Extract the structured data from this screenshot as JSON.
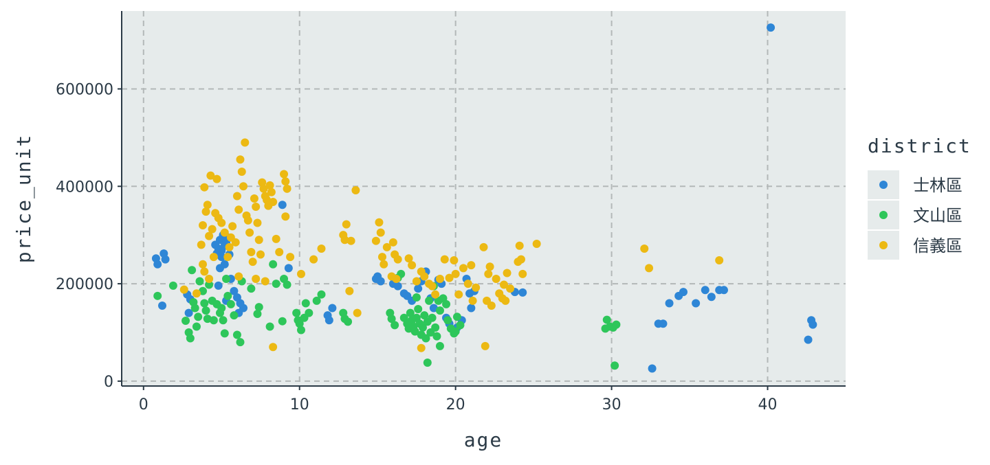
{
  "chart_data": {
    "type": "scatter",
    "title": "",
    "xlabel": "age",
    "ylabel": "price_unit",
    "xlim": [
      -1.4,
      45
    ],
    "ylim": [
      -10000,
      760000
    ],
    "xticks": [
      0,
      10,
      20,
      30,
      40
    ],
    "yticks": [
      0,
      200000,
      400000,
      600000
    ],
    "xtick_labels": [
      "0",
      "10",
      "20",
      "30",
      "40"
    ],
    "ytick_labels": [
      "0",
      "200000",
      "400000",
      "600000"
    ],
    "grid": true,
    "legend_position": "right",
    "legend_title": "district",
    "series": [
      {
        "name": "士林區",
        "color": "#2e86d6",
        "points": [
          [
            0.8,
            252000
          ],
          [
            0.9,
            240000
          ],
          [
            1.3,
            262000
          ],
          [
            1.4,
            250000
          ],
          [
            1.2,
            155000
          ],
          [
            2.8,
            178000
          ],
          [
            3.0,
            168000
          ],
          [
            2.9,
            140000
          ],
          [
            4.6,
            280000
          ],
          [
            4.8,
            272000
          ],
          [
            4.9,
            290000
          ],
          [
            5.0,
            268000
          ],
          [
            5.1,
            300000
          ],
          [
            5.2,
            278000
          ],
          [
            5.3,
            285000
          ],
          [
            5.4,
            295000
          ],
          [
            5.0,
            255000
          ],
          [
            4.7,
            262000
          ],
          [
            5.5,
            260000
          ],
          [
            5.2,
            240000
          ],
          [
            4.9,
            232000
          ],
          [
            5.6,
            210000
          ],
          [
            4.8,
            196000
          ],
          [
            5.8,
            185000
          ],
          [
            6.0,
            172000
          ],
          [
            6.2,
            160000
          ],
          [
            6.1,
            140000
          ],
          [
            6.4,
            150000
          ],
          [
            5.3,
            165000
          ],
          [
            8.9,
            362000
          ],
          [
            9.3,
            232000
          ],
          [
            11.8,
            135000
          ],
          [
            11.9,
            125000
          ],
          [
            12.1,
            150000
          ],
          [
            14.9,
            210000
          ],
          [
            15.0,
            215000
          ],
          [
            15.2,
            205000
          ],
          [
            16.0,
            200000
          ],
          [
            16.3,
            195000
          ],
          [
            16.7,
            180000
          ],
          [
            16.9,
            175000
          ],
          [
            17.2,
            165000
          ],
          [
            17.6,
            190000
          ],
          [
            17.8,
            205000
          ],
          [
            18.1,
            225000
          ],
          [
            18.4,
            170000
          ],
          [
            18.6,
            150000
          ],
          [
            18.9,
            208000
          ],
          [
            19.1,
            200000
          ],
          [
            19.4,
            130000
          ],
          [
            19.6,
            118000
          ],
          [
            20.1,
            110000
          ],
          [
            20.4,
            125000
          ],
          [
            20.7,
            210000
          ],
          [
            21.0,
            150000
          ],
          [
            20.9,
            180000
          ],
          [
            21.2,
            185000
          ],
          [
            23.8,
            183000
          ],
          [
            24.3,
            182000
          ],
          [
            32.6,
            26000
          ],
          [
            33.0,
            118000
          ],
          [
            33.3,
            118000
          ],
          [
            33.7,
            160000
          ],
          [
            34.3,
            175000
          ],
          [
            34.6,
            183000
          ],
          [
            35.4,
            160000
          ],
          [
            36.0,
            187000
          ],
          [
            36.4,
            173000
          ],
          [
            36.9,
            187000
          ],
          [
            37.2,
            187000
          ],
          [
            40.2,
            726000
          ],
          [
            42.6,
            85000
          ],
          [
            42.8,
            125000
          ],
          [
            42.9,
            116000
          ]
        ]
      },
      {
        "name": "文山區",
        "color": "#2ec65a",
        "points": [
          [
            0.9,
            175000
          ],
          [
            1.9,
            196000
          ],
          [
            2.7,
            124000
          ],
          [
            2.9,
            100000
          ],
          [
            3.0,
            88000
          ],
          [
            3.1,
            228000
          ],
          [
            3.2,
            162000
          ],
          [
            3.3,
            150000
          ],
          [
            3.4,
            112000
          ],
          [
            3.5,
            132000
          ],
          [
            3.6,
            205000
          ],
          [
            3.8,
            185000
          ],
          [
            3.9,
            160000
          ],
          [
            4.0,
            145000
          ],
          [
            4.1,
            128000
          ],
          [
            4.2,
            198000
          ],
          [
            4.4,
            165000
          ],
          [
            4.5,
            125000
          ],
          [
            4.7,
            158000
          ],
          [
            4.9,
            140000
          ],
          [
            5.0,
            150000
          ],
          [
            5.1,
            125000
          ],
          [
            5.2,
            98000
          ],
          [
            5.3,
            210000
          ],
          [
            5.4,
            175000
          ],
          [
            5.6,
            158000
          ],
          [
            5.8,
            135000
          ],
          [
            6.0,
            95000
          ],
          [
            6.2,
            80000
          ],
          [
            6.3,
            205000
          ],
          [
            6.9,
            190000
          ],
          [
            7.3,
            138000
          ],
          [
            7.4,
            152000
          ],
          [
            8.3,
            240000
          ],
          [
            8.5,
            200000
          ],
          [
            8.9,
            123000
          ],
          [
            9.0,
            210000
          ],
          [
            9.2,
            198000
          ],
          [
            8.1,
            112000
          ],
          [
            9.8,
            140000
          ],
          [
            9.9,
            125000
          ],
          [
            10.0,
            118000
          ],
          [
            10.1,
            105000
          ],
          [
            10.3,
            130000
          ],
          [
            10.4,
            160000
          ],
          [
            10.6,
            140000
          ],
          [
            11.1,
            165000
          ],
          [
            11.4,
            178000
          ],
          [
            12.8,
            140000
          ],
          [
            12.9,
            128000
          ],
          [
            13.1,
            122000
          ],
          [
            15.8,
            140000
          ],
          [
            15.9,
            128000
          ],
          [
            16.1,
            115000
          ],
          [
            16.5,
            220000
          ],
          [
            16.7,
            130000
          ],
          [
            16.9,
            118000
          ],
          [
            17.0,
            108000
          ],
          [
            17.1,
            140000
          ],
          [
            17.2,
            125000
          ],
          [
            17.3,
            112000
          ],
          [
            17.4,
            102000
          ],
          [
            17.5,
            130000
          ],
          [
            17.6,
            148000
          ],
          [
            17.7,
            118000
          ],
          [
            17.8,
            95000
          ],
          [
            17.9,
            110000
          ],
          [
            18.0,
            135000
          ],
          [
            18.1,
            88000
          ],
          [
            18.2,
            122000
          ],
          [
            18.3,
            165000
          ],
          [
            18.4,
            100000
          ],
          [
            18.5,
            130000
          ],
          [
            18.6,
            195000
          ],
          [
            18.7,
            110000
          ],
          [
            18.8,
            92000
          ],
          [
            19.0,
            145000
          ],
          [
            19.2,
            170000
          ],
          [
            19.4,
            158000
          ],
          [
            19.5,
            125000
          ],
          [
            19.7,
            108000
          ],
          [
            19.9,
            98000
          ],
          [
            20.1,
            132000
          ],
          [
            20.3,
            115000
          ],
          [
            18.2,
            38000
          ],
          [
            19.0,
            72000
          ],
          [
            20.0,
            102000
          ],
          [
            16.3,
            212000
          ],
          [
            17.5,
            172000
          ],
          [
            18.9,
            165000
          ],
          [
            29.6,
            108000
          ],
          [
            29.7,
            126000
          ],
          [
            29.9,
            112000
          ],
          [
            30.1,
            110000
          ],
          [
            30.3,
            116000
          ],
          [
            30.2,
            32000
          ]
        ]
      },
      {
        "name": "信義區",
        "color": "#ecb913",
        "points": [
          [
            2.6,
            188000
          ],
          [
            3.4,
            180000
          ],
          [
            3.7,
            280000
          ],
          [
            3.8,
            320000
          ],
          [
            3.9,
            398000
          ],
          [
            4.0,
            348000
          ],
          [
            4.1,
            362000
          ],
          [
            4.2,
            298000
          ],
          [
            4.3,
            422000
          ],
          [
            4.4,
            312000
          ],
          [
            4.5,
            255000
          ],
          [
            4.6,
            345000
          ],
          [
            4.7,
            415000
          ],
          [
            4.8,
            335000
          ],
          [
            3.8,
            240000
          ],
          [
            3.9,
            225000
          ],
          [
            4.2,
            210000
          ],
          [
            5.0,
            325000
          ],
          [
            5.2,
            305000
          ],
          [
            5.4,
            255000
          ],
          [
            5.5,
            275000
          ],
          [
            5.6,
            295000
          ],
          [
            5.7,
            318000
          ],
          [
            5.9,
            285000
          ],
          [
            6.0,
            380000
          ],
          [
            6.1,
            352000
          ],
          [
            6.2,
            455000
          ],
          [
            6.3,
            430000
          ],
          [
            6.4,
            400000
          ],
          [
            6.5,
            490000
          ],
          [
            6.6,
            340000
          ],
          [
            6.7,
            330000
          ],
          [
            6.8,
            305000
          ],
          [
            6.9,
            265000
          ],
          [
            7.0,
            245000
          ],
          [
            7.1,
            375000
          ],
          [
            7.2,
            358000
          ],
          [
            7.3,
            325000
          ],
          [
            7.4,
            290000
          ],
          [
            7.5,
            260000
          ],
          [
            7.6,
            408000
          ],
          [
            7.7,
            395000
          ],
          [
            7.8,
            380000
          ],
          [
            7.9,
            372000
          ],
          [
            8.0,
            360000
          ],
          [
            8.1,
            402000
          ],
          [
            8.2,
            388000
          ],
          [
            8.3,
            368000
          ],
          [
            8.5,
            292000
          ],
          [
            8.7,
            265000
          ],
          [
            9.0,
            425000
          ],
          [
            9.1,
            410000
          ],
          [
            9.2,
            395000
          ],
          [
            9.1,
            338000
          ],
          [
            9.4,
            255000
          ],
          [
            6.1,
            215000
          ],
          [
            7.2,
            210000
          ],
          [
            8.3,
            70000
          ],
          [
            7.8,
            205000
          ],
          [
            10.1,
            220000
          ],
          [
            10.9,
            250000
          ],
          [
            11.4,
            272000
          ],
          [
            12.8,
            300000
          ],
          [
            13.0,
            322000
          ],
          [
            12.9,
            290000
          ],
          [
            13.3,
            288000
          ],
          [
            13.6,
            392000
          ],
          [
            13.2,
            185000
          ],
          [
            13.7,
            140000
          ],
          [
            14.9,
            288000
          ],
          [
            15.1,
            326000
          ],
          [
            15.2,
            305000
          ],
          [
            15.3,
            255000
          ],
          [
            15.4,
            240000
          ],
          [
            15.6,
            275000
          ],
          [
            16.0,
            285000
          ],
          [
            16.1,
            260000
          ],
          [
            16.3,
            250000
          ],
          [
            15.9,
            215000
          ],
          [
            16.2,
            210000
          ],
          [
            17.0,
            252000
          ],
          [
            17.2,
            238000
          ],
          [
            17.5,
            205000
          ],
          [
            17.8,
            225000
          ],
          [
            18.0,
            215000
          ],
          [
            18.3,
            200000
          ],
          [
            18.5,
            195000
          ],
          [
            18.7,
            178000
          ],
          [
            19.0,
            210000
          ],
          [
            19.3,
            250000
          ],
          [
            19.6,
            212000
          ],
          [
            19.9,
            248000
          ],
          [
            20.0,
            220000
          ],
          [
            20.2,
            178000
          ],
          [
            20.5,
            232000
          ],
          [
            20.8,
            200000
          ],
          [
            21.0,
            238000
          ],
          [
            21.1,
            165000
          ],
          [
            21.3,
            192000
          ],
          [
            21.8,
            275000
          ],
          [
            22.0,
            165000
          ],
          [
            22.1,
            220000
          ],
          [
            22.2,
            235000
          ],
          [
            22.3,
            155000
          ],
          [
            22.6,
            210000
          ],
          [
            22.8,
            180000
          ],
          [
            23.0,
            170000
          ],
          [
            23.1,
            198000
          ],
          [
            23.3,
            222000
          ],
          [
            23.5,
            190000
          ],
          [
            24.0,
            245000
          ],
          [
            24.2,
            250000
          ],
          [
            24.1,
            278000
          ],
          [
            25.2,
            282000
          ],
          [
            24.3,
            220000
          ],
          [
            23.2,
            165000
          ],
          [
            21.9,
            72000
          ],
          [
            17.8,
            68000
          ],
          [
            32.1,
            272000
          ],
          [
            32.4,
            232000
          ],
          [
            36.9,
            248000
          ]
        ]
      }
    ]
  }
}
